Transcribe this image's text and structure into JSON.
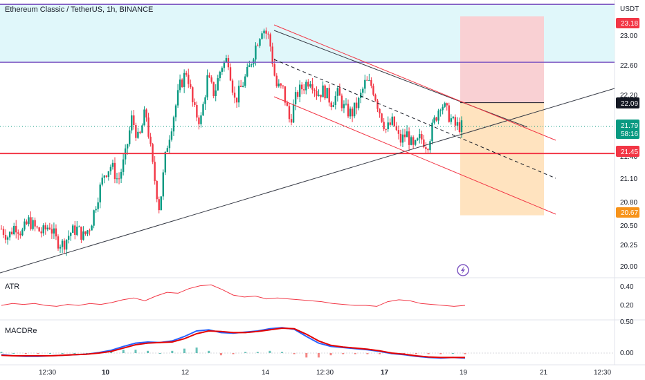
{
  "header": {
    "title": "Ethereum Classic / TetherUS, 1h, BINANCE",
    "currency": "USDT"
  },
  "price_axis": {
    "ticks": [
      "23.00",
      "22.60",
      "22.20",
      "21.10",
      "20.80",
      "20.50",
      "20.25",
      "20.00"
    ],
    "clipped_tick": "21.40",
    "tags": [
      {
        "id": "tp",
        "text": "23.18",
        "bg": "#f23645",
        "fg": "#ffffff"
      },
      {
        "id": "entry",
        "text": "22.09",
        "bg": "#131722",
        "fg": "#ffffff"
      },
      {
        "id": "last",
        "text": "21.79",
        "sub": "58:16",
        "bg": "#089981",
        "fg": "#ffffff"
      },
      {
        "id": "support",
        "text": "21.45",
        "bg": "#f23645",
        "fg": "#ffffff"
      },
      {
        "id": "sl",
        "text": "20.67",
        "bg": "#f7931a",
        "fg": "#ffffff"
      }
    ]
  },
  "time_axis": {
    "labels": [
      {
        "text": "12:30",
        "bold": false
      },
      {
        "text": "10",
        "bold": true
      },
      {
        "text": "12",
        "bold": false
      },
      {
        "text": "14",
        "bold": false
      },
      {
        "text": "12:30",
        "bold": false
      },
      {
        "text": "17",
        "bold": true
      },
      {
        "text": "19",
        "bold": false
      },
      {
        "text": "21",
        "bold": false
      },
      {
        "text": "12:30",
        "bold": false
      }
    ]
  },
  "indicators": {
    "atr": {
      "name": "ATR",
      "ticks": [
        "0.40",
        "0.20"
      ]
    },
    "macd": {
      "name": "MACDRe",
      "ticks": [
        "0.50",
        "0.00"
      ]
    }
  },
  "colors": {
    "up": "#089981",
    "down": "#f23645",
    "resistance_line": "#7e57c2",
    "support_line": "#f23645",
    "zone_fill": "#e0f7fa",
    "trendline": "#363a45",
    "channel": "#f23645",
    "profit_zone": "#f9d0d3",
    "loss_zone": "#ffe3bf",
    "macd_line": "#2962ff",
    "signal_line": "#e30000",
    "atr_line": "#f23645"
  },
  "chart_data": {
    "type": "candlestick",
    "symbol": "ETCUSDT",
    "interval": "1h",
    "ylim": [
      19.9,
      23.35
    ],
    "horizontal_levels": [
      {
        "price": 23.33,
        "role": "zone-top"
      },
      {
        "price": 22.6,
        "role": "resistance"
      },
      {
        "price": 21.45,
        "role": "support"
      }
    ],
    "position": {
      "entry": 22.09,
      "target": 23.18,
      "stop": 20.67
    },
    "last_price": 21.79,
    "countdown": "58:16",
    "close_path": [
      20.5,
      20.4,
      20.55,
      20.45,
      20.6,
      20.5,
      20.45,
      20.55,
      20.35,
      20.3,
      20.45,
      20.5,
      20.4,
      20.55,
      20.9,
      21.2,
      21.3,
      21.1,
      21.4,
      21.9,
      21.6,
      22.0,
      21.3,
      20.75,
      21.5,
      21.9,
      22.3,
      22.5,
      22.0,
      21.85,
      22.4,
      22.2,
      22.55,
      22.65,
      22.1,
      22.3,
      22.5,
      22.8,
      23.05,
      22.9,
      22.3,
      22.25,
      21.85,
      22.2,
      22.3,
      22.4,
      22.2,
      22.25,
      22.1,
      22.2,
      22.0,
      21.95,
      22.1,
      22.35,
      22.3,
      22.0,
      21.75,
      21.85,
      21.6,
      21.7,
      21.5,
      21.65,
      21.55,
      21.85,
      22.1,
      21.95,
      21.8,
      21.79
    ],
    "atr_path": [
      0.2,
      0.22,
      0.21,
      0.22,
      0.2,
      0.19,
      0.21,
      0.2,
      0.22,
      0.21,
      0.23,
      0.26,
      0.28,
      0.25,
      0.3,
      0.34,
      0.33,
      0.38,
      0.41,
      0.42,
      0.37,
      0.31,
      0.29,
      0.3,
      0.27,
      0.28,
      0.27,
      0.26,
      0.25,
      0.24,
      0.22,
      0.21,
      0.2,
      0.2,
      0.19,
      0.24,
      0.26,
      0.25,
      0.22,
      0.21,
      0.2,
      0.19,
      0.2
    ],
    "macd_path": [
      -0.03,
      -0.05,
      -0.06,
      -0.06,
      -0.05,
      -0.04,
      -0.03,
      -0.02,
      0.01,
      0.05,
      0.12,
      0.18,
      0.2,
      0.19,
      0.22,
      0.3,
      0.4,
      0.42,
      0.37,
      0.36,
      0.38,
      0.4,
      0.44,
      0.46,
      0.43,
      0.3,
      0.18,
      0.12,
      0.1,
      0.08,
      0.06,
      0.03,
      -0.01,
      -0.03,
      -0.06,
      -0.08,
      -0.09,
      -0.08,
      -0.09
    ],
    "signal_path": [
      -0.04,
      -0.05,
      -0.05,
      -0.05,
      -0.05,
      -0.04,
      -0.03,
      -0.02,
      0.0,
      0.03,
      0.09,
      0.15,
      0.18,
      0.19,
      0.2,
      0.26,
      0.35,
      0.4,
      0.39,
      0.37,
      0.37,
      0.39,
      0.42,
      0.45,
      0.44,
      0.34,
      0.22,
      0.14,
      0.11,
      0.09,
      0.07,
      0.04,
      0.0,
      -0.02,
      -0.05,
      -0.07,
      -0.08,
      -0.08,
      -0.08
    ]
  }
}
